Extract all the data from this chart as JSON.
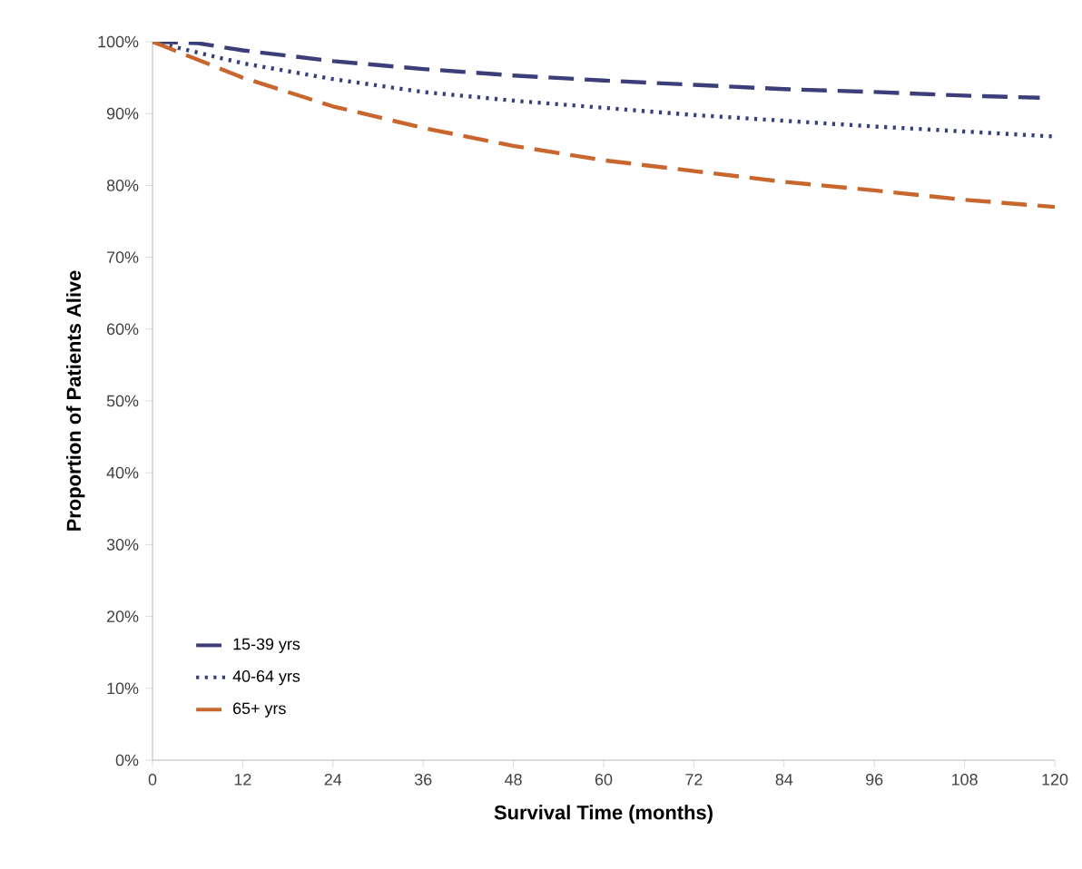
{
  "chart_data": {
    "type": "line",
    "xlabel": "Survival Time (months)",
    "ylabel": "Proportion of Patients Alive",
    "xlim": [
      0,
      120
    ],
    "xticks": [
      0,
      12,
      24,
      36,
      48,
      60,
      72,
      84,
      96,
      108,
      120
    ],
    "ylim": [
      0,
      100
    ],
    "yticks": [
      {
        "value": 0,
        "label": "0%"
      },
      {
        "value": 10,
        "label": "10%"
      },
      {
        "value": 20,
        "label": "20%"
      },
      {
        "value": 30,
        "label": "30%"
      },
      {
        "value": 40,
        "label": "40%"
      },
      {
        "value": 50,
        "label": "50%"
      },
      {
        "value": 60,
        "label": "60%"
      },
      {
        "value": 70,
        "label": "70%"
      },
      {
        "value": 80,
        "label": "80%"
      },
      {
        "value": 90,
        "label": "90%"
      },
      {
        "value": 100,
        "label": "100%"
      }
    ],
    "grid": false,
    "legend": "bottom left",
    "marker": "none",
    "series": [
      {
        "name": "15-39 yrs",
        "color": "#3b3e78",
        "line_style": "dashed",
        "x": [
          0,
          6,
          12,
          24,
          36,
          48,
          60,
          72,
          84,
          96,
          108,
          118
        ],
        "values": [
          100,
          99.8,
          98.8,
          97.3,
          96.2,
          95.3,
          94.6,
          94,
          93.4,
          93,
          92.5,
          92.2
        ]
      },
      {
        "name": "40-64 yrs",
        "color": "#34407a",
        "line_style": "dotted",
        "x": [
          0,
          6,
          12,
          24,
          36,
          48,
          60,
          72,
          84,
          96,
          108,
          120
        ],
        "values": [
          100,
          98.5,
          97,
          94.8,
          93,
          91.8,
          90.8,
          89.8,
          89,
          88.2,
          87.5,
          86.8
        ]
      },
      {
        "name": "65+ yrs",
        "color": "#c8662e",
        "line_style": "dashed",
        "x": [
          0,
          6,
          12,
          24,
          36,
          48,
          60,
          72,
          84,
          96,
          108,
          120
        ],
        "values": [
          100,
          97.5,
          95,
          91,
          88,
          85.5,
          83.5,
          82,
          80.5,
          79.3,
          78,
          77
        ]
      }
    ]
  }
}
